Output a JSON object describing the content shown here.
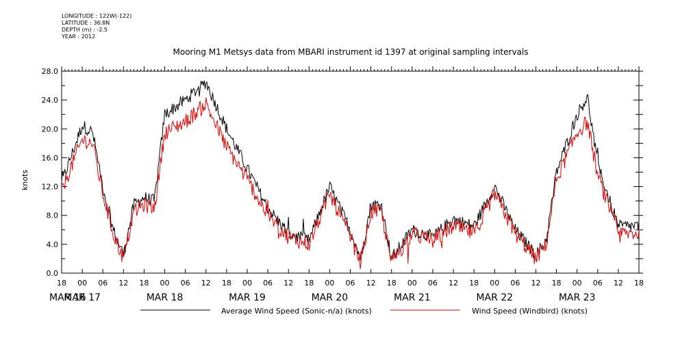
{
  "meta": {
    "longitude": "LONGITUDE : 122W(-122)",
    "latitude": "LATITUDE : 36.8N",
    "depth": "DEPTH (m) : -2.5",
    "year": "YEAR : 2012"
  },
  "chart_data": {
    "type": "line",
    "title": "Mooring M1 Metsys data from MBARI instrument id 1397 at original sampling intervals",
    "ylabel": "knots",
    "xlabel": "",
    "ylim": [
      0,
      28
    ],
    "xlim": [
      "2012-03-16T18:00",
      "2012-03-23T18:00"
    ],
    "y_ticks": [
      "0.0",
      "4.0",
      "8.0",
      "12.0",
      "16.0",
      "20.0",
      "24.0",
      "28.0"
    ],
    "x_hour_ticks": [
      "18",
      "00",
      "06",
      "12",
      "18",
      "00",
      "06",
      "12",
      "18",
      "00",
      "06",
      "12",
      "18",
      "00",
      "06",
      "12",
      "18",
      "00",
      "06",
      "12",
      "18",
      "00",
      "06",
      "12",
      "18",
      "00",
      "06",
      "12",
      "18"
    ],
    "x_day_labels": [
      "MAR 16",
      "MAR 17",
      "MAR 18",
      "MAR 19",
      "MAR 20",
      "MAR 21",
      "MAR 22",
      "MAR 23"
    ],
    "grid": false,
    "legend_position": "bottom",
    "series": [
      {
        "name": "Average Wind Speed (Sonic-n/a) (knots)",
        "color": "#000000",
        "x": [
          "2012-03-16T18:00",
          "2012-03-17T00:00",
          "2012-03-17T03:00",
          "2012-03-17T06:00",
          "2012-03-17T09:00",
          "2012-03-17T12:00",
          "2012-03-17T15:00",
          "2012-03-17T18:00",
          "2012-03-17T21:00",
          "2012-03-18T00:00",
          "2012-03-18T06:00",
          "2012-03-18T12:00",
          "2012-03-18T18:00",
          "2012-03-19T00:00",
          "2012-03-19T06:00",
          "2012-03-19T12:00",
          "2012-03-19T18:00",
          "2012-03-20T00:00",
          "2012-03-20T06:00",
          "2012-03-20T09:00",
          "2012-03-20T12:00",
          "2012-03-20T15:00",
          "2012-03-20T18:00",
          "2012-03-21T00:00",
          "2012-03-21T06:00",
          "2012-03-21T12:00",
          "2012-03-21T18:00",
          "2012-03-22T00:00",
          "2012-03-22T06:00",
          "2012-03-22T12:00",
          "2012-03-22T15:00",
          "2012-03-22T18:00",
          "2012-03-23T00:00",
          "2012-03-23T03:00",
          "2012-03-23T06:00",
          "2012-03-23T12:00",
          "2012-03-23T18:00"
        ],
        "y": [
          12.5,
          20.5,
          19.5,
          12.0,
          6.0,
          2.5,
          9.5,
          10.5,
          10.0,
          22.0,
          24.0,
          26.5,
          20.0,
          14.5,
          9.0,
          5.5,
          4.5,
          12.0,
          6.0,
          2.0,
          9.5,
          9.5,
          2.0,
          6.0,
          5.0,
          7.5,
          6.5,
          12.0,
          6.0,
          2.5,
          4.5,
          14.0,
          22.0,
          24.5,
          15.0,
          6.5,
          6.5
        ]
      },
      {
        "name": "Wind Speed (Windbird) (knots)",
        "color": "#e00000",
        "x": [
          "2012-03-16T18:00",
          "2012-03-17T00:00",
          "2012-03-17T03:00",
          "2012-03-17T06:00",
          "2012-03-17T09:00",
          "2012-03-17T12:00",
          "2012-03-17T15:00",
          "2012-03-17T18:00",
          "2012-03-17T21:00",
          "2012-03-18T00:00",
          "2012-03-18T06:00",
          "2012-03-18T12:00",
          "2012-03-18T18:00",
          "2012-03-19T00:00",
          "2012-03-19T06:00",
          "2012-03-19T12:00",
          "2012-03-19T18:00",
          "2012-03-20T00:00",
          "2012-03-20T06:00",
          "2012-03-20T09:00",
          "2012-03-20T12:00",
          "2012-03-20T15:00",
          "2012-03-20T18:00",
          "2012-03-21T00:00",
          "2012-03-21T06:00",
          "2012-03-21T12:00",
          "2012-03-21T18:00",
          "2012-03-22T00:00",
          "2012-03-22T06:00",
          "2012-03-22T12:00",
          "2012-03-22T15:00",
          "2012-03-22T18:00",
          "2012-03-23T00:00",
          "2012-03-23T03:00",
          "2012-03-23T06:00",
          "2012-03-23T12:00",
          "2012-03-23T18:00"
        ],
        "y": [
          11.5,
          18.5,
          18.0,
          11.0,
          5.5,
          2.0,
          8.5,
          9.5,
          9.0,
          19.5,
          21.0,
          23.5,
          17.5,
          13.0,
          8.0,
          5.0,
          4.0,
          11.0,
          5.0,
          1.5,
          8.5,
          8.5,
          1.5,
          5.5,
          4.5,
          6.5,
          5.5,
          11.0,
          5.5,
          2.0,
          4.0,
          13.0,
          19.5,
          21.0,
          13.5,
          5.5,
          5.5
        ]
      }
    ]
  }
}
